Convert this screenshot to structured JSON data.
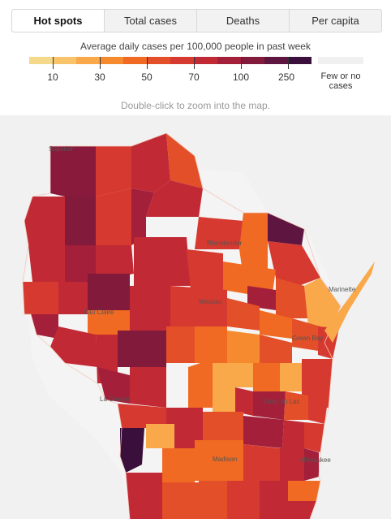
{
  "tabs": [
    {
      "label": "Hot spots",
      "active": true
    },
    {
      "label": "Total cases",
      "active": false
    },
    {
      "label": "Deaths",
      "active": false
    },
    {
      "label": "Per capita",
      "active": false
    }
  ],
  "legend": {
    "title": "Average daily cases per 100,000 people in past week",
    "colors": [
      "#f5d98b",
      "#f8c36a",
      "#f9a84a",
      "#f68a2e",
      "#f06a23",
      "#e34f28",
      "#d6392f",
      "#c12a35",
      "#a31f3a",
      "#821a3c",
      "#5e1640",
      "#3b0f3c"
    ],
    "ticks": [
      "10",
      "30",
      "50",
      "70",
      "100",
      "250"
    ],
    "no_cases_label": "Few or no cases",
    "no_cases_color": "#f0f0f0"
  },
  "hint": "Double-click to zoom into the map.",
  "map": {
    "state": "Wisconsin",
    "city_labels": [
      "Superior",
      "Rhinelander",
      "Marinette",
      "Eau Claire",
      "Wausau",
      "Green Bay",
      "La Crosse",
      "Fond du Lac",
      "Madison",
      "Milwaukee"
    ]
  }
}
